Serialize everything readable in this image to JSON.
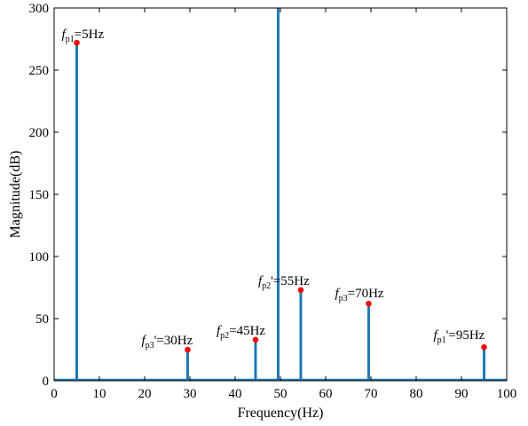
{
  "chart_data": {
    "type": "line",
    "title": "",
    "xlabel": "Frequency(Hz)",
    "ylabel": "Magnitude(dB)",
    "xlim": [
      0,
      100
    ],
    "ylim": [
      0,
      300
    ],
    "xticks": [
      0,
      10,
      20,
      30,
      40,
      50,
      60,
      70,
      80,
      90,
      100
    ],
    "yticks": [
      0,
      50,
      100,
      150,
      200,
      250,
      300
    ],
    "grid": false,
    "legend": "none",
    "line_color": "#1f77b4",
    "marker_color": "#ff0000",
    "peaks": [
      {
        "x": 5,
        "y": 272,
        "marked": true
      },
      {
        "x": 29.5,
        "y": 25,
        "marked": true
      },
      {
        "x": 44.5,
        "y": 33,
        "marked": true
      },
      {
        "x": 49.5,
        "y": 300,
        "marked": false
      },
      {
        "x": 54.5,
        "y": 73,
        "marked": true
      },
      {
        "x": 69.5,
        "y": 62,
        "marked": true
      },
      {
        "x": 95,
        "y": 27,
        "marked": true
      }
    ],
    "annotations": [
      {
        "f": "f",
        "sub": "p1",
        "prime": "",
        "text": "=5Hz",
        "x": 5,
        "y": 272
      },
      {
        "f": "f",
        "sub": "p3",
        "prime": "'",
        "text": "=30Hz",
        "x": 29.5,
        "y": 25
      },
      {
        "f": "f",
        "sub": "p2",
        "prime": "",
        "text": "=45Hz",
        "x": 44.5,
        "y": 33
      },
      {
        "f": "f",
        "sub": "p2",
        "prime": "'",
        "text": "=55Hz",
        "x": 54.5,
        "y": 73
      },
      {
        "f": "f",
        "sub": "p3",
        "prime": "",
        "text": "=70Hz",
        "x": 69.5,
        "y": 62
      },
      {
        "f": "f",
        "sub": "p1",
        "prime": "'",
        "text": "=95Hz",
        "x": 95,
        "y": 27
      }
    ]
  }
}
